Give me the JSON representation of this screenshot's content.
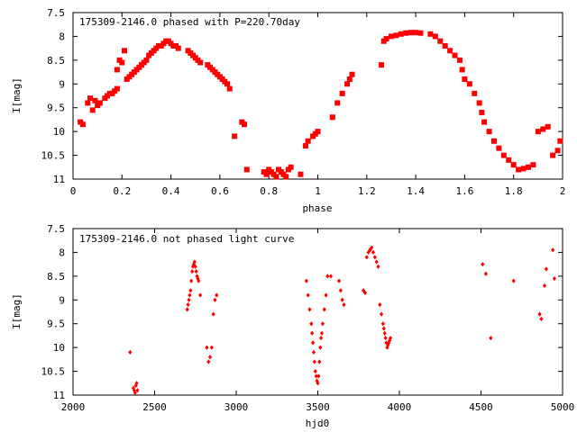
{
  "chart_data": [
    {
      "type": "scatter",
      "title": "175309-2146.0 phased with P=220.70day",
      "xlabel": "phase",
      "ylabel": "I[mag]",
      "xlim": [
        0,
        2
      ],
      "ylim": [
        11,
        7.5
      ],
      "y_inverted": true,
      "grid": false,
      "x_ticks": [
        "0",
        "0.2",
        "0.4",
        "0.6",
        "0.8",
        "1",
        "1.2",
        "1.4",
        "1.6",
        "1.8",
        "2"
      ],
      "y_ticks": [
        "7.5",
        "8",
        "8.5",
        "9",
        "9.5",
        "10",
        "10.5",
        "11"
      ],
      "series": [
        {
          "color": "#ff0000",
          "marker": "filled-square",
          "x": [
            0.03,
            0.04,
            0.06,
            0.07,
            0.08,
            0.09,
            0.1,
            0.11,
            0.13,
            0.14,
            0.15,
            0.16,
            0.17,
            0.18,
            0.18,
            0.19,
            0.2,
            0.21,
            0.22,
            0.23,
            0.24,
            0.25,
            0.26,
            0.27,
            0.28,
            0.29,
            0.3,
            0.31,
            0.32,
            0.33,
            0.34,
            0.35,
            0.36,
            0.37,
            0.38,
            0.39,
            0.4,
            0.41,
            0.42,
            0.43,
            0.47,
            0.48,
            0.49,
            0.5,
            0.51,
            0.52,
            0.55,
            0.56,
            0.57,
            0.58,
            0.59,
            0.6,
            0.61,
            0.62,
            0.63,
            0.64,
            0.66,
            0.69,
            0.7,
            0.71,
            0.78,
            0.79,
            0.8,
            0.81,
            0.82,
            0.83,
            0.84,
            0.85,
            0.86,
            0.87,
            0.88,
            0.89,
            0.93,
            0.95,
            0.96,
            0.98,
            0.99,
            1.0,
            1.06,
            1.08,
            1.1,
            1.12,
            1.13,
            1.14,
            1.26,
            1.27,
            1.28,
            1.3,
            1.32,
            1.34,
            1.36,
            1.38,
            1.4,
            1.42,
            1.46,
            1.48,
            1.5,
            1.52,
            1.54,
            1.56,
            1.58,
            1.59,
            1.6,
            1.62,
            1.64,
            1.66,
            1.67,
            1.68,
            1.7,
            1.72,
            1.74,
            1.76,
            1.78,
            1.8,
            1.82,
            1.84,
            1.86,
            1.88,
            1.9,
            1.92,
            1.94,
            1.96,
            1.98,
            1.99
          ],
          "y": [
            9.8,
            9.85,
            9.4,
            9.3,
            9.55,
            9.35,
            9.45,
            9.4,
            9.3,
            9.25,
            9.2,
            9.2,
            9.15,
            9.1,
            8.7,
            8.5,
            8.55,
            8.3,
            8.9,
            8.85,
            8.8,
            8.75,
            8.7,
            8.65,
            8.6,
            8.55,
            8.5,
            8.4,
            8.35,
            8.3,
            8.25,
            8.2,
            8.2,
            8.15,
            8.1,
            8.1,
            8.15,
            8.2,
            8.2,
            8.25,
            8.3,
            8.35,
            8.4,
            8.45,
            8.5,
            8.55,
            8.6,
            8.65,
            8.7,
            8.75,
            8.8,
            8.85,
            8.9,
            8.95,
            9.0,
            9.1,
            10.1,
            9.8,
            9.85,
            10.8,
            10.85,
            10.9,
            10.8,
            10.85,
            10.9,
            10.95,
            10.8,
            10.85,
            10.9,
            10.95,
            10.8,
            10.75,
            10.9,
            10.3,
            10.2,
            10.1,
            10.05,
            10.0,
            9.7,
            9.4,
            9.2,
            9.0,
            8.9,
            8.8,
            8.6,
            8.1,
            8.05,
            8.0,
            7.98,
            7.95,
            7.93,
            7.92,
            7.92,
            7.93,
            7.95,
            8.0,
            8.1,
            8.2,
            8.3,
            8.4,
            8.5,
            8.7,
            8.9,
            9.0,
            9.2,
            9.4,
            9.6,
            9.8,
            10.0,
            10.2,
            10.35,
            10.5,
            10.6,
            10.7,
            10.8,
            10.78,
            10.75,
            10.7,
            10.0,
            9.95,
            9.9,
            10.5,
            10.4,
            10.2
          ]
        }
      ]
    },
    {
      "type": "scatter",
      "title": "175309-2146.0 not phased light curve",
      "xlabel": "hjd0",
      "ylabel": "I[mag]",
      "xlim": [
        2000,
        5000
      ],
      "ylim": [
        11,
        7.5
      ],
      "y_inverted": true,
      "grid": false,
      "x_ticks": [
        "2000",
        "2500",
        "3000",
        "3500",
        "4000",
        "4500",
        "5000"
      ],
      "y_ticks": [
        "7.5",
        "8",
        "8.5",
        "9",
        "9.5",
        "10",
        "10.5",
        "11"
      ],
      "series": [
        {
          "color": "#ff0000",
          "marker": "filled-diamond",
          "x": [
            2350,
            2370,
            2375,
            2380,
            2385,
            2390,
            2395,
            2700,
            2705,
            2710,
            2715,
            2720,
            2725,
            2730,
            2735,
            2740,
            2745,
            2750,
            2755,
            2760,
            2765,
            2770,
            2780,
            2820,
            2830,
            2840,
            2850,
            2860,
            2870,
            2880,
            3430,
            3440,
            3450,
            3460,
            3465,
            3470,
            3475,
            3480,
            3485,
            3490,
            3495,
            3500,
            3505,
            3510,
            3515,
            3520,
            3525,
            3530,
            3540,
            3550,
            3560,
            3580,
            3630,
            3640,
            3650,
            3660,
            3780,
            3790,
            3800,
            3810,
            3820,
            3830,
            3840,
            3850,
            3860,
            3870,
            3880,
            3890,
            3900,
            3905,
            3910,
            3915,
            3920,
            3925,
            3930,
            3935,
            3940,
            3945,
            4510,
            4530,
            4560,
            4700,
            4860,
            4870,
            4890,
            4900,
            4940,
            4950
          ],
          "y": [
            10.1,
            10.85,
            10.9,
            10.95,
            10.8,
            10.75,
            10.9,
            9.2,
            9.1,
            9.0,
            8.9,
            8.8,
            8.6,
            8.4,
            8.3,
            8.25,
            8.2,
            8.3,
            8.4,
            8.5,
            8.55,
            8.6,
            8.9,
            10.0,
            10.3,
            10.2,
            10.0,
            9.3,
            9.0,
            8.9,
            8.6,
            8.9,
            9.2,
            9.5,
            9.7,
            9.9,
            10.1,
            10.3,
            10.5,
            10.6,
            10.7,
            10.75,
            10.6,
            10.3,
            10.0,
            9.8,
            9.7,
            9.5,
            9.2,
            8.9,
            8.5,
            8.5,
            8.6,
            8.8,
            9.0,
            9.1,
            8.8,
            8.85,
            8.1,
            8.0,
            7.95,
            7.9,
            8.0,
            8.1,
            8.2,
            8.3,
            9.1,
            9.3,
            9.5,
            9.6,
            9.7,
            9.8,
            9.9,
            10.0,
            9.95,
            9.9,
            9.85,
            9.8,
            8.25,
            8.45,
            9.8,
            8.6,
            9.3,
            9.4,
            8.7,
            8.35,
            7.95,
            8.55
          ]
        }
      ]
    }
  ]
}
